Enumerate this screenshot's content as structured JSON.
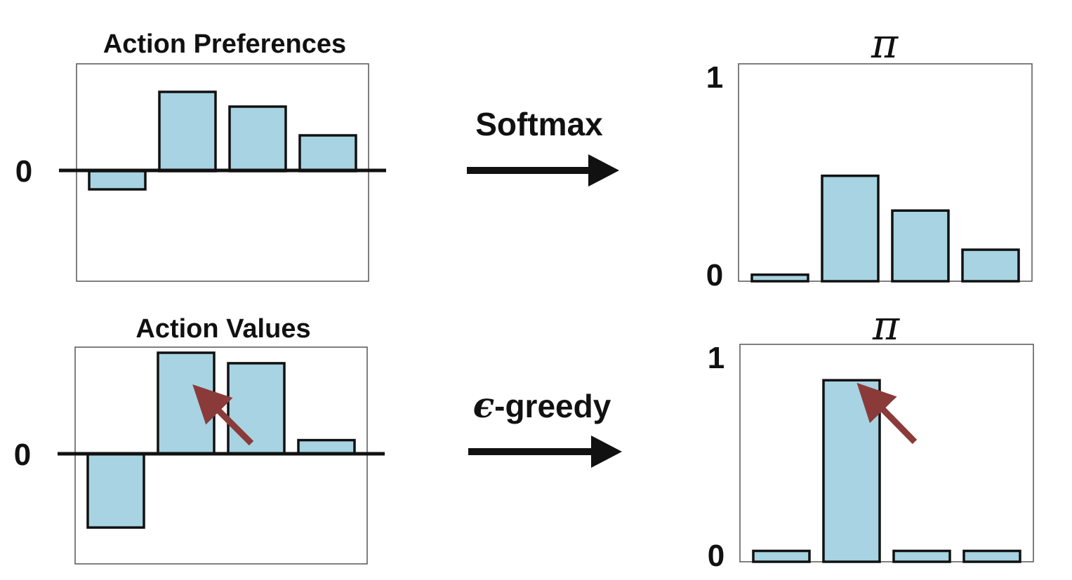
{
  "colors": {
    "bar_fill": "#a7d3e2",
    "bar_stroke": "#111111",
    "arrow": "#111111",
    "highlight_arrow": "#8b3a3a"
  },
  "chart_data": [
    {
      "id": "preferences",
      "type": "bar",
      "title": "Action Preferences",
      "y_tick_labels": {
        "zero": "0"
      },
      "values": [
        -0.26,
        1.13,
        0.92,
        0.51
      ],
      "ylim": [
        -1.57,
        1.53
      ]
    },
    {
      "id": "pi_softmax",
      "type": "bar",
      "title": "π",
      "y_tick_labels": {
        "zero": "0",
        "one": "1"
      },
      "values": [
        0.03,
        0.485,
        0.325,
        0.145
      ],
      "ylim": [
        0,
        1
      ]
    },
    {
      "id": "values",
      "type": "bar",
      "title": "Action Values",
      "y_tick_labels": {
        "zero": "0"
      },
      "values": [
        -1.05,
        1.45,
        1.3,
        0.2
      ],
      "ylim": [
        -1.57,
        1.53
      ],
      "highlight_bar": 1
    },
    {
      "id": "pi_greedy",
      "type": "bar",
      "title": "π",
      "y_tick_labels": {
        "zero": "0",
        "one": "1"
      },
      "values": [
        0.05,
        0.835,
        0.05,
        0.05
      ],
      "ylim": [
        0,
        1
      ],
      "highlight_bar": 1
    }
  ],
  "operations": {
    "softmax": {
      "label": "Softmax"
    },
    "greedy": {
      "symbol": "ϵ",
      "label": "-greedy"
    }
  }
}
